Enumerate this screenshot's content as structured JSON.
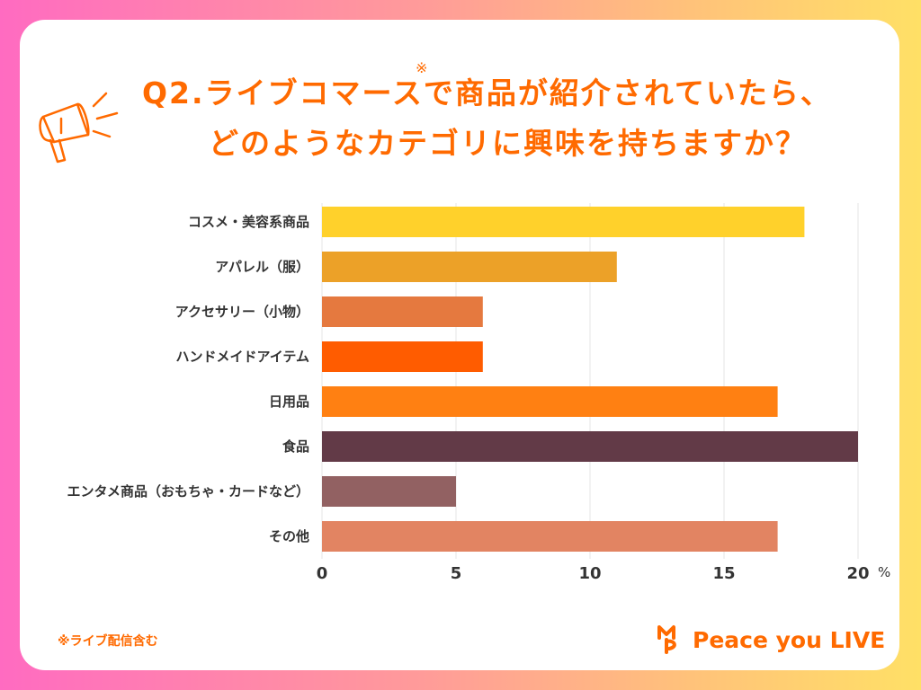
{
  "title_line1": "Q2.ライブコマースで商品が紹介されていたら、",
  "title_line2": "どのようなカテゴリに興味を持ちますか？",
  "title_asterisk": "※",
  "footnote": "※ライブ配信含む",
  "brand_name": "Peace you LIVE",
  "colors": {
    "accent": "#ff6a00"
  },
  "icons": [
    "megaphone-icon",
    "brand-logo-icon"
  ],
  "chart_data": {
    "type": "bar",
    "orientation": "horizontal",
    "categories": [
      "コスメ・美容系商品",
      "アパレル（服）",
      "アクセサリー（小物）",
      "ハンドメイドアイテム",
      "日用品",
      "食品",
      "エンタメ商品（おもちゃ・カードなど）",
      "その他"
    ],
    "values": [
      18,
      11,
      6,
      6,
      17,
      20,
      5,
      17
    ],
    "colors": [
      "#ffd12b",
      "#eca128",
      "#e5793f",
      "#ff5c00",
      "#ff8012",
      "#623a47",
      "#926162",
      "#e28462"
    ],
    "xlim": [
      0,
      20
    ],
    "xticks": [
      "0",
      "5",
      "10",
      "15",
      "20"
    ],
    "unit": "%",
    "grid": true
  }
}
